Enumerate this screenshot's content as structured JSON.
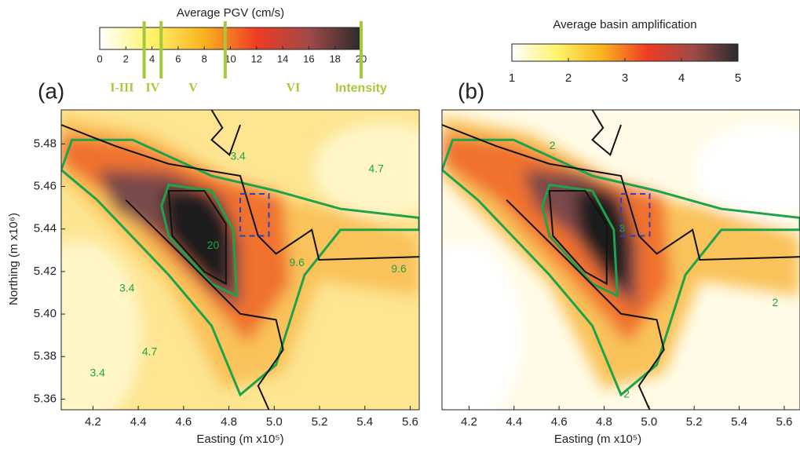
{
  "chart_data": [
    {
      "type": "heatmap",
      "panel_label": "(a)",
      "colorbar_title": "Average PGV (cm/s)",
      "colorbar_lim": [
        0,
        20
      ],
      "colorbar_ticks": [
        0,
        2,
        4,
        6,
        8,
        10,
        12,
        14,
        16,
        18,
        20
      ],
      "colormap": [
        "#ffffff",
        "#fff36a",
        "#f9b21e",
        "#ef3b24",
        "#a04a48",
        "#2b2b2b"
      ],
      "contour_levels": [
        3.4,
        4.7,
        9.6,
        20
      ],
      "contour_color": "#1fa34a",
      "marker_color": "#a6c93c",
      "intensity_labels": [
        "I-III",
        "IV",
        "V",
        "VI"
      ],
      "intensity_title": "Intensity",
      "xlabel": "Easting (m x10⁵)",
      "ylabel": "Northing (m x10⁶)",
      "xlim": [
        4.06,
        5.64
      ],
      "xticks": [
        4.2,
        4.4,
        4.6,
        4.8,
        {
          "value": 5,
          "label": "5.0"
        },
        5.2,
        5.4,
        5.6
      ],
      "ylim": [
        5.355,
        5.496
      ],
      "yticks": [
        5.36,
        5.38,
        {
          "value": 5.4,
          "label": "5.40"
        },
        5.42,
        5.44,
        5.46,
        5.48
      ]
    },
    {
      "type": "heatmap",
      "panel_label": "(b)",
      "colorbar_title": "Average basin amplification",
      "colorbar_lim": [
        1,
        5
      ],
      "colorbar_ticks": [
        1,
        2,
        3,
        4,
        5
      ],
      "colormap": [
        "#ffffff",
        "#fff36a",
        "#f9b21e",
        "#ef3b24",
        "#a04a48",
        "#2b2b2b"
      ],
      "contour_levels": [
        2,
        3
      ],
      "contour_color": "#1fa34a",
      "xlabel": "Easting (m x10⁵)",
      "xlim": [
        4.08,
        5.67
      ],
      "xticks": [
        4.2,
        4.4,
        4.6,
        4.8,
        {
          "value": 5,
          "label": "5.0"
        },
        5.2,
        5.4,
        5.6
      ],
      "ylim": [
        5.355,
        5.496
      ]
    }
  ]
}
